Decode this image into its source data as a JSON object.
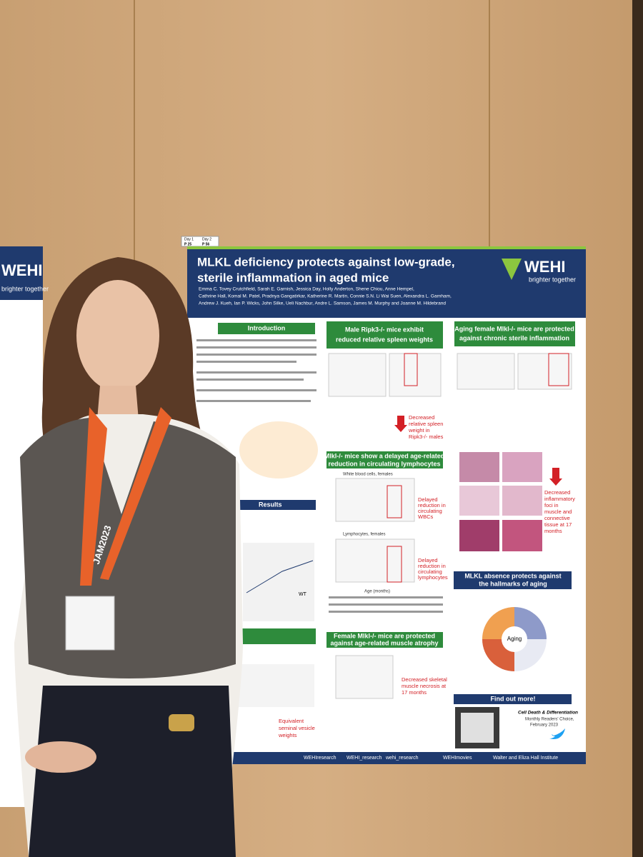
{
  "room_sign": {
    "days": [
      "Day 1",
      "Day 2"
    ],
    "posters": [
      "P 25",
      "P 56"
    ]
  },
  "poster": {
    "title": [
      "MLKL deficiency protects against low-grade,",
      "sterile inflammation in aged mice"
    ],
    "logo": "WEHI",
    "tagline": "brighter together",
    "authors": [
      "Emma C. Tovey Crutchfield, Sarah E. Garnish, Jessica Day, Holly Anderton, Shene Chiou, Anne Hempel,",
      "Cathrine Hall, Komal M. Patel, Pradnya Gangatirkar, Katherine R. Martin, Connie S.N. Li Wai Suen, Alexandra L. Garnham,",
      "Andrew J. Kueh, Ian P. Wicks, John Silke, Ueli Nachbur, Andre L. Samson, James M. Murphy and Joanne M. Hildebrand"
    ],
    "sections": {
      "introduction": "Introduction",
      "results": "Results",
      "spleen": [
        "Male Ripk3-/- mice exhibit",
        "reduced relative spleen weights"
      ],
      "inflammation": [
        "Aging female Mlkl-/- mice are protected",
        "against chronic sterile inflammation"
      ],
      "lymphocytes": [
        "Mlkl-/- mice show a delayed age-related",
        "reduction in circulating lymphocytes"
      ],
      "muscle": [
        "Female Mlkl-/- mice are protected",
        "against age-related muscle atrophy"
      ],
      "hallmarks": [
        "MLKL absence protects against",
        "the hallmarks of aging"
      ],
      "find_out": "Find out more!"
    },
    "callouts": {
      "spleen": [
        "Decreased",
        "relative spleen",
        "weight in",
        "Ripk3-/- males"
      ],
      "wbc": [
        "Delayed",
        "reduction in",
        "circulating",
        "WBCs"
      ],
      "lymph": [
        "Delayed",
        "reduction in",
        "circulating",
        "lymphocytes"
      ],
      "foci": [
        "Decreased",
        "inflammatory",
        "foci in",
        "muscle and",
        "connective",
        "tissue at 17",
        "months"
      ],
      "muscle": [
        "Decreased skeletal",
        "muscle necrosis at",
        "17 months"
      ],
      "seminal": [
        "Equivalent",
        "seminal vesicle",
        "weights"
      ]
    },
    "plot_labels": {
      "wbc": "White blood cells, females",
      "lymph": "Lymphocytes, females",
      "age": "Age (months)",
      "aging": "Aging",
      "wt": "WT"
    },
    "journal": [
      "Cell Death & Differentiation",
      "Monthly Readers' Choice,",
      "February 2023"
    ],
    "footer": [
      "WEHIresearch",
      "WEHI_research",
      "wehi_research",
      "WEHImovies",
      "Walter and Eliza Hall Institute"
    ]
  },
  "lanyard": "JAM2023",
  "left_poster": {
    "logo": "WEHI",
    "tagline": "brighter together"
  }
}
